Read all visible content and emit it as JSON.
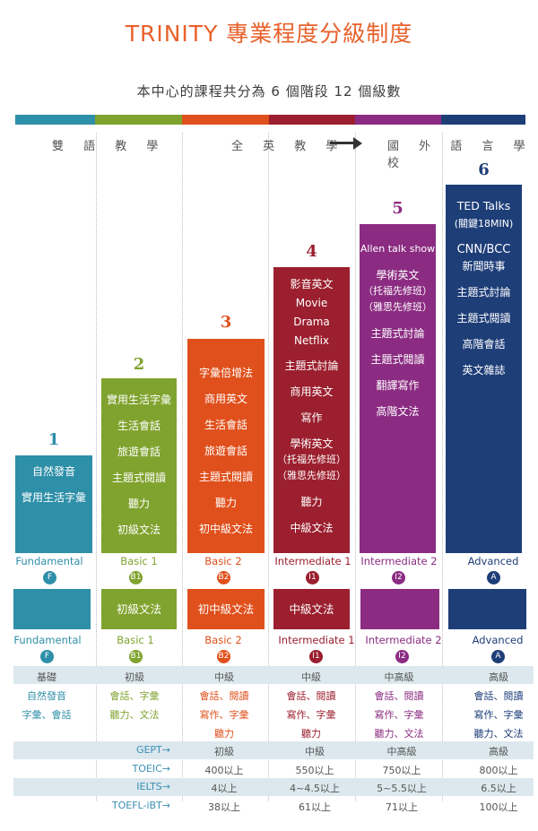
{
  "title": "TRINITY 專業程度分級制度",
  "subtitle": "本中心的課程共分為 6 個階段 12 個級數",
  "colors": {
    "c1": "#2e8fa8",
    "c2": "#7fa32e",
    "c3": "#e0501c",
    "c4": "#9b1f2e",
    "c5": "#8b2c82",
    "c6": "#1e3e78"
  },
  "sections": {
    "bilingual": "雙 語 教 學",
    "all_english": "全 英 教 學",
    "abroad": "國 外 語 言 學 校"
  },
  "stages": [
    {
      "num": "1",
      "items": [
        "自然發音",
        "實用生活字彙"
      ],
      "level_label": "Fundamental",
      "badge": "F",
      "grammar": "",
      "level2_label": "Fundamental",
      "badge2": "F"
    },
    {
      "num": "2",
      "items": [
        "實用生活字彙",
        "生活會話",
        "旅遊會話",
        "主題式閱讀",
        "聽力",
        "初級文法"
      ],
      "level_label": "Basic 1",
      "badge": "B1",
      "grammar": "初級文法",
      "level2_label": "Basic 1",
      "badge2": "B1"
    },
    {
      "num": "3",
      "items": [
        "字彙倍增法",
        "商用英文",
        "生活會話",
        "旅遊會話",
        "主題式閱讀",
        "聽力",
        "初中級文法"
      ],
      "level_label": "Basic 2",
      "badge": "B2",
      "grammar": "初中級文法",
      "level2_label": "Basic 2",
      "badge2": "B2"
    },
    {
      "num": "4",
      "items": [
        "影音英文",
        "Movie",
        "Drama",
        "Netflix",
        "主題式討論",
        "商用英文",
        "寫作",
        "學術英文",
        "（托福先修班）",
        "（雅思先修班）",
        "聽力",
        "中級文法"
      ],
      "level_label": "Intermediate 1",
      "badge": "I1",
      "grammar": "中級文法",
      "level2_label": "Intermediate 1",
      "badge2": "I1"
    },
    {
      "num": "5",
      "items": [
        "Allen talk show",
        "學術英文",
        "（托福先修班）",
        "（雅思先修班）",
        "主題式討論",
        "主題式閱讀",
        "翻譯寫作",
        "高階文法"
      ],
      "level_label": "Intermediate 2",
      "badge": "I2",
      "grammar": "",
      "level2_label": "Intermediate 2",
      "badge2": "I2"
    },
    {
      "num": "6",
      "items": [
        "TED Talks",
        "(關鍵18MIN)",
        "CNN/BCC",
        "新聞時事",
        "主題式討論",
        "主題式閱讀",
        "高階會話",
        "英文雜誌"
      ],
      "level_label": "Advanced",
      "badge": "A",
      "grammar": "",
      "level2_label": "Advanced",
      "badge2": "A"
    }
  ],
  "table": {
    "level_names": [
      "基礎",
      "初級",
      "中級",
      "中級",
      "中高級",
      "高級"
    ],
    "skills": [
      [
        "自然發音",
        "字彙、會話"
      ],
      [
        "會話、字彙",
        "聽力、文法"
      ],
      [
        "會話、閱讀",
        "寫作、字彙",
        "聽力"
      ],
      [
        "會話、閱讀",
        "寫作、字彙",
        "聽力"
      ],
      [
        "會話、閱讀",
        "寫作、字彙",
        "聽力、文法"
      ],
      [
        "會話、閱讀",
        "寫作、字彙",
        "聽力、文法"
      ]
    ],
    "exams": [
      {
        "label": "GEPT→",
        "values": [
          "初級",
          "中級",
          "中高級",
          "高級"
        ]
      },
      {
        "label": "TOEIC→",
        "values": [
          "400以上",
          "550以上",
          "750以上",
          "800以上"
        ]
      },
      {
        "label": "IELTS→",
        "values": [
          "4以上",
          "4~4.5以上",
          "5~5.5以上",
          "6.5以上"
        ]
      },
      {
        "label": "TOEFL-iBT→",
        "values": [
          "38以上",
          "61以上",
          "71以上",
          "100以上"
        ]
      }
    ]
  }
}
